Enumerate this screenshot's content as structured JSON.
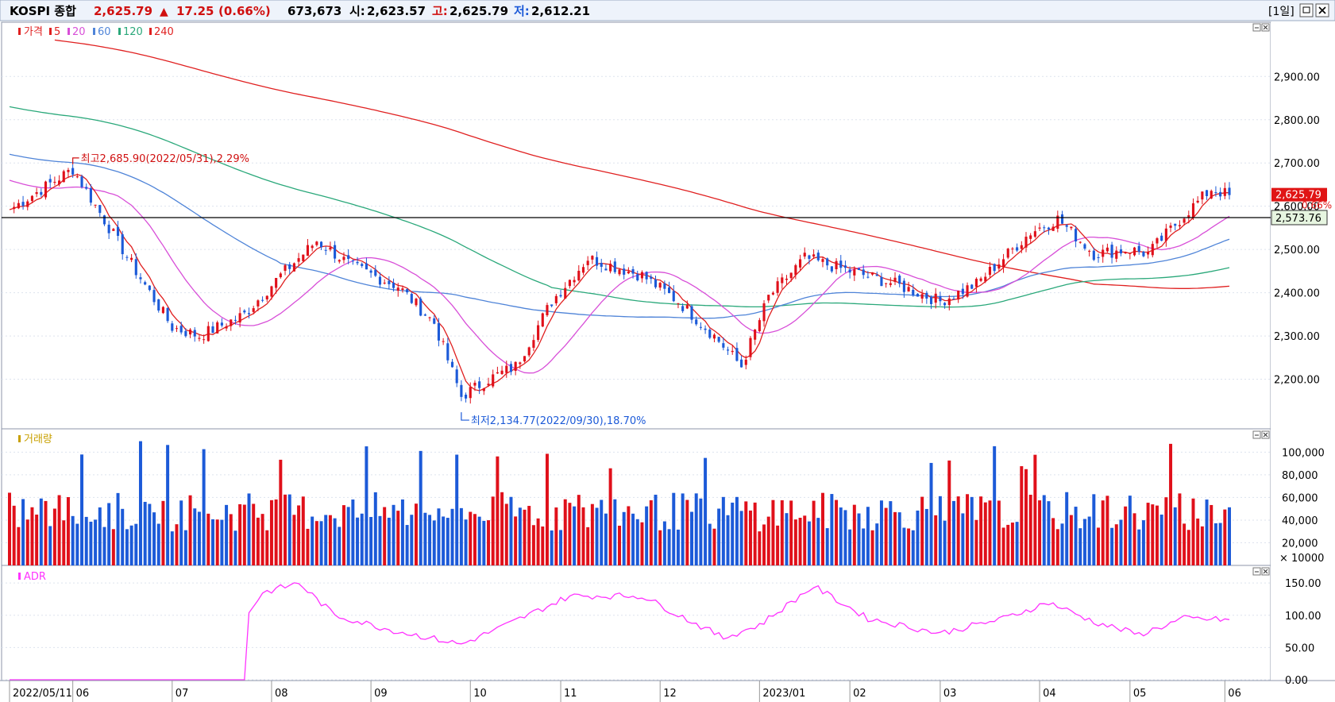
{
  "header": {
    "name": "KOSPI 종합",
    "price": "2,625.79",
    "change_arrow": "▲",
    "change": "17.25",
    "change_pct": "(0.66%)",
    "volume": "673,673",
    "open_label": "시:",
    "open": "2,623.57",
    "high_label": "고:",
    "high": "2,625.79",
    "low_label": "저:",
    "low": "2,612.21",
    "period": "[1일]"
  },
  "colors": {
    "up": "#e0101a",
    "down": "#1c5ad8",
    "ma5": "#e02020",
    "ma20": "#d84fd8",
    "ma60": "#4f84d8",
    "ma120": "#2aa87a",
    "ma240": "#e02020",
    "adr": "#ff33ff"
  },
  "price_panel": {
    "legend": {
      "title": "가격",
      "ma": [
        "5",
        "20",
        "60",
        "120",
        "240"
      ]
    },
    "annotation_high": "최고2,685.90(2022/05/31),2.29%",
    "annotation_low": "최저2,134.77(2022/09/30),18.70%",
    "current_label": "2,625.79",
    "current_pct": "0.66%",
    "ref_line_label": "2,573.76"
  },
  "volume_panel": {
    "legend": "거래량",
    "unit": "× 10000"
  },
  "adr_panel": {
    "legend": "ADR"
  },
  "x_axis": {
    "labels": [
      "2022/05/11",
      "06",
      "07",
      "08",
      "09",
      "10",
      "11",
      "12",
      "2023/01",
      "02",
      "03",
      "04",
      "05",
      "06"
    ]
  },
  "chart_data": [
    {
      "type": "candlestick",
      "title": "KOSPI 종합",
      "y_ticks": [
        "2,900.00",
        "2,800.00",
        "2,700.00",
        "2,600.00",
        "2,500.00",
        "2,400.00",
        "2,300.00",
        "2,200.00"
      ],
      "ylim": [
        2100,
        2985
      ],
      "x_range": [
        "2022/05/11",
        "2023/06/12"
      ],
      "trading_days": 270,
      "reference_line": 2573.76,
      "key_points": [
        {
          "day": 0,
          "close": 2592
        },
        {
          "day": 14,
          "close": 2685.9
        },
        {
          "day": 28,
          "close": 2450
        },
        {
          "day": 36,
          "close": 2320
        },
        {
          "day": 42,
          "close": 2300
        },
        {
          "day": 52,
          "close": 2350
        },
        {
          "day": 60,
          "close": 2440
        },
        {
          "day": 68,
          "close": 2520
        },
        {
          "day": 76,
          "close": 2460
        },
        {
          "day": 86,
          "close": 2415
        },
        {
          "day": 94,
          "close": 2330
        },
        {
          "day": 100,
          "close": 2160
        },
        {
          "day": 106,
          "close": 2200
        },
        {
          "day": 112,
          "close": 2230
        },
        {
          "day": 120,
          "close": 2380
        },
        {
          "day": 128,
          "close": 2480
        },
        {
          "day": 134,
          "close": 2460
        },
        {
          "day": 140,
          "close": 2440
        },
        {
          "day": 148,
          "close": 2380
        },
        {
          "day": 156,
          "close": 2300
        },
        {
          "day": 162,
          "close": 2230
        },
        {
          "day": 168,
          "close": 2390
        },
        {
          "day": 176,
          "close": 2480
        },
        {
          "day": 186,
          "close": 2450
        },
        {
          "day": 196,
          "close": 2420
        },
        {
          "day": 206,
          "close": 2380
        },
        {
          "day": 214,
          "close": 2420
        },
        {
          "day": 226,
          "close": 2540
        },
        {
          "day": 232,
          "close": 2571
        },
        {
          "day": 240,
          "close": 2490
        },
        {
          "day": 248,
          "close": 2500
        },
        {
          "day": 252,
          "close": 2490
        },
        {
          "day": 260,
          "close": 2580
        },
        {
          "day": 266,
          "close": 2640
        },
        {
          "day": 270,
          "close": 2625.79
        }
      ],
      "moving_averages": [
        "5",
        "20",
        "60",
        "120",
        "240"
      ]
    },
    {
      "type": "bar",
      "title": "거래량",
      "y_ticks": [
        "100,000",
        "80,000",
        "60,000",
        "40,000",
        "20,000"
      ],
      "ylim": [
        0,
        115000
      ],
      "unit": "× 10000",
      "typical_range": [
        30000,
        110000
      ]
    },
    {
      "type": "line",
      "title": "ADR",
      "y_ticks": [
        "150.00",
        "100.00",
        "50.00",
        "0.00"
      ],
      "ylim": [
        0,
        165
      ],
      "key_points": [
        {
          "day": 0,
          "value": 0
        },
        {
          "day": 52,
          "value": 0
        },
        {
          "day": 53,
          "value": 105
        },
        {
          "day": 56,
          "value": 135
        },
        {
          "day": 64,
          "value": 150
        },
        {
          "day": 72,
          "value": 100
        },
        {
          "day": 84,
          "value": 78
        },
        {
          "day": 100,
          "value": 55
        },
        {
          "day": 110,
          "value": 85
        },
        {
          "day": 124,
          "value": 130
        },
        {
          "day": 140,
          "value": 130
        },
        {
          "day": 158,
          "value": 65
        },
        {
          "day": 166,
          "value": 85
        },
        {
          "day": 178,
          "value": 145
        },
        {
          "day": 190,
          "value": 95
        },
        {
          "day": 206,
          "value": 72
        },
        {
          "day": 220,
          "value": 95
        },
        {
          "day": 230,
          "value": 120
        },
        {
          "day": 240,
          "value": 90
        },
        {
          "day": 250,
          "value": 70
        },
        {
          "day": 260,
          "value": 95
        },
        {
          "day": 270,
          "value": 93
        }
      ]
    }
  ]
}
